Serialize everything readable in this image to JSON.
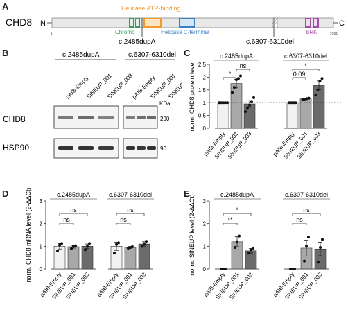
{
  "panel_letters": {
    "a": "A",
    "b": "B",
    "c": "C",
    "d": "D",
    "e": "E"
  },
  "panel_a": {
    "protein": "CHD8",
    "n_term": "N",
    "c_term": "C",
    "start": "1",
    "end": "2581",
    "domains": {
      "chromo": "Chromo",
      "helicase_atp": "Helicase ATP-binding",
      "helicase_c": "Helicase C-terminal",
      "brk": "BRK"
    },
    "mutations": {
      "m1": "c.2485dupA",
      "m2": "c.6307-6310del"
    },
    "colors": {
      "chromo": "#2e9e5b",
      "helicase_atp": "#f39a2b",
      "helicase_c": "#3b7fc4",
      "brk": "#a14fa3"
    }
  },
  "panel_b": {
    "group1": "c.2485dupA",
    "group2": "c.6307-6310del",
    "lanes": [
      "pAIB-Empty",
      "SINEUP_001",
      "SINEUP_003"
    ],
    "rows": [
      "CHD8",
      "HSP90"
    ],
    "kda": "KDa",
    "sizes": [
      "290",
      "90"
    ]
  },
  "chart_data": [
    {
      "panel": "C",
      "type": "bar",
      "ylabel": "norm. CHD8 protein level",
      "ylim": [
        0,
        2.5
      ],
      "yticks": [
        "0",
        "0.5",
        "1",
        "1.5",
        "2",
        "2.5"
      ],
      "categories": [
        "pAIB-Empty",
        "SINEUP_001",
        "SINEUP_003"
      ],
      "groups": [
        {
          "name": "c.2485dupA",
          "values": [
            1.0,
            1.75,
            0.95
          ],
          "errors": [
            0.0,
            0.17,
            0.13
          ],
          "points": [
            [
              1,
              1,
              1,
              1,
              1
            ],
            [
              1.4,
              1.6,
              1.9,
              1.95,
              2.05
            ],
            [
              0.65,
              0.8,
              0.9,
              1.05,
              1.2
            ]
          ],
          "stats": [
            {
              "from": 0,
              "to": 1,
              "label": "*"
            },
            {
              "from": 1,
              "to": 2,
              "label": "ns"
            }
          ]
        },
        {
          "name": "c.6307-6310del",
          "values": [
            1.0,
            1.15,
            1.68
          ],
          "errors": [
            0.0,
            0.03,
            0.17
          ],
          "points": [
            [
              1,
              1,
              1,
              1
            ],
            [
              1.12,
              1.14,
              1.16,
              1.18
            ],
            [
              1.3,
              1.5,
              1.85,
              1.95
            ]
          ],
          "stats": [
            {
              "from": 0,
              "to": 1,
              "label": "0.09"
            },
            {
              "from": 0,
              "to": 2,
              "label": "*"
            }
          ]
        }
      ],
      "reference_line": 1
    },
    {
      "panel": "D",
      "type": "bar",
      "ylabel": "norm. CHD8 mRNA level (2-ΔΔCt)",
      "ylim": [
        0,
        3
      ],
      "yticks": [
        "0",
        "1",
        "2",
        "3"
      ],
      "categories": [
        "pAIB-Empty",
        "SINEUP_001",
        "SINEUP_003"
      ],
      "groups": [
        {
          "name": "c.2485dupA",
          "values": [
            1.0,
            0.98,
            1.0
          ],
          "errors": [
            0.12,
            0.06,
            0.1
          ],
          "points": [
            [
              0.8,
              1.05,
              1.12
            ],
            [
              0.9,
              1.0,
              1.02
            ],
            [
              0.85,
              1.0,
              1.12
            ]
          ],
          "stats": [
            {
              "from": 0,
              "to": 1,
              "label": "ns"
            },
            {
              "from": 0,
              "to": 2,
              "label": "ns"
            }
          ]
        },
        {
          "name": "c.6307-6310del",
          "values": [
            1.0,
            0.95,
            1.1
          ],
          "errors": [
            0.18,
            0.04,
            0.1
          ],
          "points": [
            [
              0.7,
              1.08,
              1.15
            ],
            [
              0.92,
              0.95,
              0.98
            ],
            [
              1.0,
              1.1,
              1.22
            ]
          ],
          "stats": [
            {
              "from": 0,
              "to": 1,
              "label": "ns"
            },
            {
              "from": 0,
              "to": 2,
              "label": "ns"
            }
          ]
        }
      ]
    },
    {
      "panel": "E",
      "type": "bar",
      "ylabel": "norm. SINEUP level (2-ΔΔCt)",
      "ylim": [
        0,
        3
      ],
      "yticks": [
        "0",
        "1",
        "2",
        "3"
      ],
      "categories": [
        "pAIB-Empty",
        "SINEUP_001",
        "SINEUP_003"
      ],
      "groups": [
        {
          "name": "c.2485dupA",
          "values": [
            0.0,
            1.2,
            0.8
          ],
          "errors": [
            0.0,
            0.22,
            0.1
          ],
          "points": [
            [
              0,
              0,
              0
            ],
            [
              0.95,
              1.2,
              1.45
            ],
            [
              0.7,
              0.85,
              0.9
            ]
          ],
          "stats": [
            {
              "from": 0,
              "to": 1,
              "label": "**"
            },
            {
              "from": 0,
              "to": 2,
              "label": "*"
            }
          ]
        },
        {
          "name": "c.6307-6310del",
          "values": [
            0.0,
            0.92,
            0.88
          ],
          "errors": [
            0.0,
            0.35,
            0.3
          ],
          "points": [
            [
              0,
              0,
              0
            ],
            [
              0.35,
              1.0,
              1.4
            ],
            [
              0.3,
              0.95,
              1.3
            ]
          ],
          "stats": [
            {
              "from": 0,
              "to": 1,
              "label": "ns"
            },
            {
              "from": 0,
              "to": 2,
              "label": "ns"
            }
          ]
        }
      ]
    }
  ]
}
